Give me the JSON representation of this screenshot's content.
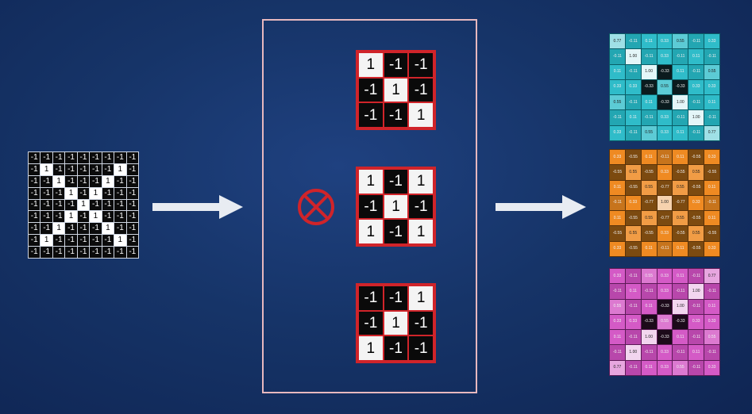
{
  "input_matrix": [
    [
      "-1",
      "-1",
      "-1",
      "-1",
      "-1",
      "-1",
      "-1",
      "-1",
      "-1"
    ],
    [
      "-1",
      "1",
      "-1",
      "-1",
      "-1",
      "-1",
      "-1",
      "1",
      "-1"
    ],
    [
      "-1",
      "-1",
      "1",
      "-1",
      "-1",
      "-1",
      "1",
      "-1",
      "-1"
    ],
    [
      "-1",
      "-1",
      "-1",
      "1",
      "-1",
      "1",
      "-1",
      "-1",
      "-1"
    ],
    [
      "-1",
      "-1",
      "-1",
      "-1",
      "1",
      "-1",
      "-1",
      "-1",
      "-1"
    ],
    [
      "-1",
      "-1",
      "-1",
      "1",
      "-1",
      "1",
      "-1",
      "-1",
      "-1"
    ],
    [
      "-1",
      "-1",
      "1",
      "-1",
      "-1",
      "-1",
      "1",
      "-1",
      "-1"
    ],
    [
      "-1",
      "1",
      "-1",
      "-1",
      "-1",
      "-1",
      "-1",
      "1",
      "-1"
    ],
    [
      "-1",
      "-1",
      "-1",
      "-1",
      "-1",
      "-1",
      "-1",
      "-1",
      "-1"
    ]
  ],
  "filters": [
    [
      [
        "1",
        "-1",
        "-1"
      ],
      [
        "-1",
        "1",
        "-1"
      ],
      [
        "-1",
        "-1",
        "1"
      ]
    ],
    [
      [
        "1",
        "-1",
        "1"
      ],
      [
        "-1",
        "1",
        "-1"
      ],
      [
        "1",
        "-1",
        "1"
      ]
    ],
    [
      [
        "-1",
        "-1",
        "1"
      ],
      [
        "-1",
        "1",
        "-1"
      ],
      [
        "1",
        "-1",
        "-1"
      ]
    ]
  ],
  "feature_maps": [
    {
      "colors": {
        "pos": "#e4f6f8",
        "mid": "#2fbcc9",
        "neg": "#0e7e86",
        "zero": "#0b1b1e"
      },
      "values": [
        [
          "0.77",
          "-0.11",
          "0.11",
          "0.33",
          "0.55",
          "-0.11",
          "0.33"
        ],
        [
          "-0.11",
          "1.00",
          "-0.11",
          "0.33",
          "-0.11",
          "0.11",
          "-0.11"
        ],
        [
          "0.11",
          "-0.11",
          "1.00",
          "-0.33",
          "0.11",
          "-0.11",
          "0.55"
        ],
        [
          "0.33",
          "0.33",
          "-0.33",
          "0.55",
          "-0.33",
          "0.33",
          "0.33"
        ],
        [
          "0.55",
          "-0.11",
          "0.11",
          "-0.33",
          "1.00",
          "-0.11",
          "0.11"
        ],
        [
          "-0.11",
          "0.11",
          "-0.11",
          "0.33",
          "-0.11",
          "1.00",
          "-0.11"
        ],
        [
          "0.33",
          "-0.11",
          "0.55",
          "0.33",
          "0.11",
          "-0.11",
          "0.77"
        ]
      ]
    },
    {
      "colors": {
        "pos": "#f6d2ae",
        "mid": "#ef8a22",
        "neg": "#7c4a10",
        "zero": "#170d05"
      },
      "values": [
        [
          "0.33",
          "-0.55",
          "0.11",
          "-0.11",
          "0.11",
          "-0.55",
          "0.33"
        ],
        [
          "-0.55",
          "0.55",
          "-0.55",
          "0.33",
          "-0.55",
          "0.55",
          "-0.55"
        ],
        [
          "0.11",
          "-0.55",
          "0.55",
          "-0.77",
          "0.55",
          "-0.55",
          "0.11"
        ],
        [
          "-0.11",
          "0.33",
          "-0.77",
          "1.00",
          "-0.77",
          "0.33",
          "-0.11"
        ],
        [
          "0.11",
          "-0.55",
          "0.55",
          "-0.77",
          "0.55",
          "-0.55",
          "0.11"
        ],
        [
          "-0.55",
          "0.55",
          "-0.55",
          "0.33",
          "-0.55",
          "0.55",
          "-0.55"
        ],
        [
          "0.33",
          "-0.55",
          "0.11",
          "-0.11",
          "0.11",
          "-0.55",
          "0.33"
        ]
      ]
    },
    {
      "colors": {
        "pos": "#f2d5ef",
        "mid": "#d45ac6",
        "neg": "#83247a",
        "zero": "#1c0a1a"
      },
      "values": [
        [
          "0.33",
          "-0.11",
          "0.55",
          "0.33",
          "0.11",
          "-0.11",
          "0.77"
        ],
        [
          "-0.11",
          "0.11",
          "-0.11",
          "0.33",
          "-0.11",
          "1.00",
          "-0.11"
        ],
        [
          "0.55",
          "-0.11",
          "0.11",
          "-0.33",
          "1.00",
          "-0.11",
          "0.11"
        ],
        [
          "0.33",
          "0.33",
          "-0.33",
          "0.55",
          "-0.33",
          "0.33",
          "0.33"
        ],
        [
          "0.11",
          "-0.11",
          "1.00",
          "-0.33",
          "0.11",
          "-0.11",
          "0.55"
        ],
        [
          "-0.11",
          "1.00",
          "-0.11",
          "0.33",
          "-0.11",
          "0.11",
          "-0.11"
        ],
        [
          "0.77",
          "-0.11",
          "0.11",
          "0.33",
          "0.55",
          "-0.11",
          "0.33"
        ]
      ]
    }
  ]
}
